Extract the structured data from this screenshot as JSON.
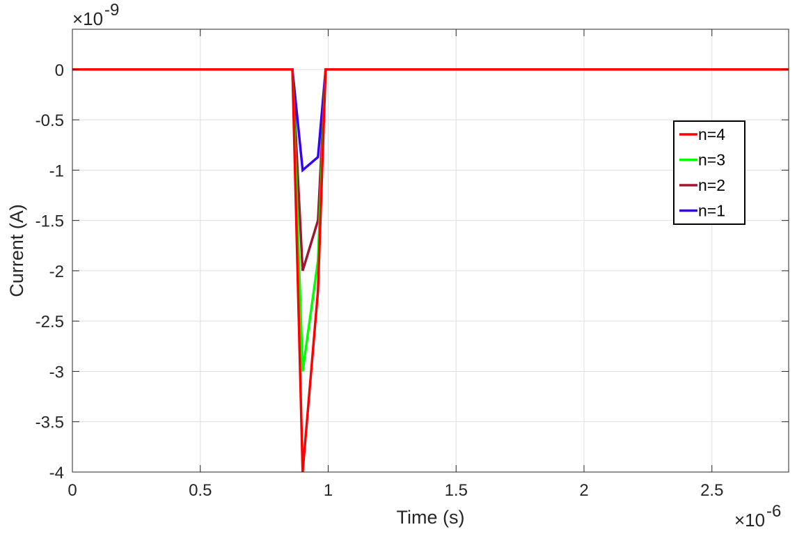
{
  "chart_data": {
    "type": "line",
    "title": "",
    "xlabel": "Time (s)",
    "ylabel": "Current (A)",
    "x_exponent_label": "×10",
    "x_exponent_power": "-6",
    "y_exponent_label": "×10",
    "y_exponent_power": "-9",
    "xlim": [
      0,
      2.8
    ],
    "ylim": [
      -4,
      0.4
    ],
    "x_scale": "1e-6",
    "y_scale": "1e-9",
    "xticks": [
      0,
      0.5,
      1,
      1.5,
      2,
      2.5
    ],
    "xtick_labels": [
      "0",
      "0.5",
      "1",
      "1.5",
      "2",
      "2.5"
    ],
    "yticks": [
      0,
      -0.5,
      -1,
      -1.5,
      -2,
      -2.5,
      -3,
      -3.5,
      -4
    ],
    "ytick_labels": [
      "0",
      "-0.5",
      "-1",
      "-1.5",
      "-2",
      "-2.5",
      "-3",
      "-3.5",
      "-4"
    ],
    "grid": true,
    "legend_position": "right, upper-middle",
    "series": [
      {
        "name": "n=4",
        "color": "#ff0000",
        "x": [
          0,
          0.86,
          0.9,
          0.96,
          0.99,
          2.8
        ],
        "y": [
          0,
          0,
          -4,
          -2.2,
          0,
          0
        ]
      },
      {
        "name": "n=3",
        "color": "#00ff00",
        "x": [
          0,
          0.86,
          0.9,
          0.96,
          0.99,
          2.8
        ],
        "y": [
          0,
          0,
          -3,
          -1.9,
          0,
          0
        ]
      },
      {
        "name": "n=2",
        "color": "#a2142f",
        "x": [
          0,
          0.86,
          0.9,
          0.96,
          0.99,
          2.8
        ],
        "y": [
          0,
          0,
          -2,
          -1.5,
          0,
          0
        ]
      },
      {
        "name": "n=1",
        "color": "#3300ff",
        "x": [
          0,
          0.86,
          0.9,
          0.96,
          0.99,
          2.8
        ],
        "y": [
          0,
          0,
          -1,
          -0.87,
          0,
          0
        ]
      }
    ]
  }
}
